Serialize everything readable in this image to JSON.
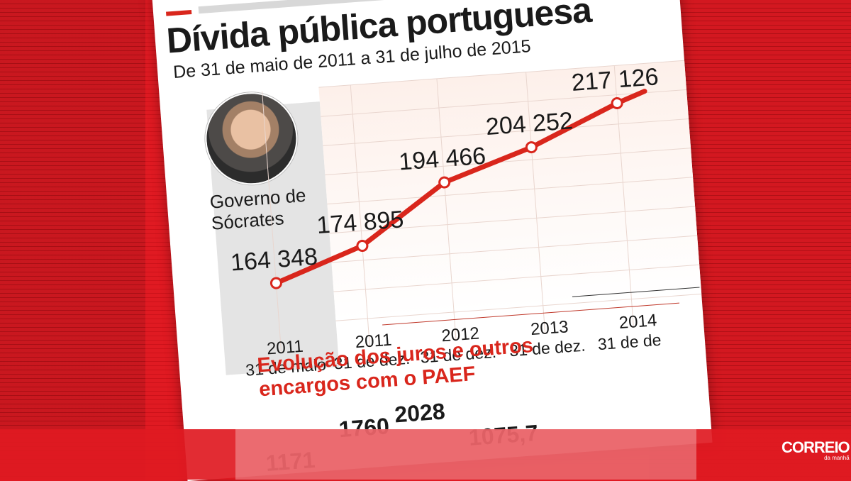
{
  "header": {
    "title": "Dívida pública portuguesa",
    "subtitle": "De 31 de maio de 2011 a 31 de julho de 2015"
  },
  "government_label": "Governo de Sócrates",
  "chart_data": {
    "type": "line",
    "title": "Dívida pública portuguesa",
    "subtitle": "De 31 de maio de 2011 a 31 de julho de 2015",
    "points": [
      {
        "year": "2011",
        "date": "31 de maio",
        "value": 164348,
        "label": "164 348"
      },
      {
        "year": "2011",
        "date": "31 de dez.",
        "value": 174895,
        "label": "174 895"
      },
      {
        "year": "2012",
        "date": "31 de dez.",
        "value": 194466,
        "label": "194 466"
      },
      {
        "year": "2013",
        "date": "31 de dez.",
        "value": 204252,
        "label": "204 252"
      },
      {
        "year": "2014",
        "date": "31 de de",
        "value": 217126,
        "label": "217 126"
      }
    ],
    "ylim": [
      150000,
      230000
    ],
    "grid": true,
    "line_color": "#d9261c"
  },
  "section2": {
    "title": "Evolução dos juros e outros encargos com o PAEF",
    "partial_values": [
      "1171",
      "1760",
      "2028",
      "1075,7"
    ]
  },
  "brand": {
    "logo": "CORREIO",
    "logo_sub": "da manhã"
  },
  "colors": {
    "accent": "#d9261c",
    "background": "#e01a22"
  }
}
